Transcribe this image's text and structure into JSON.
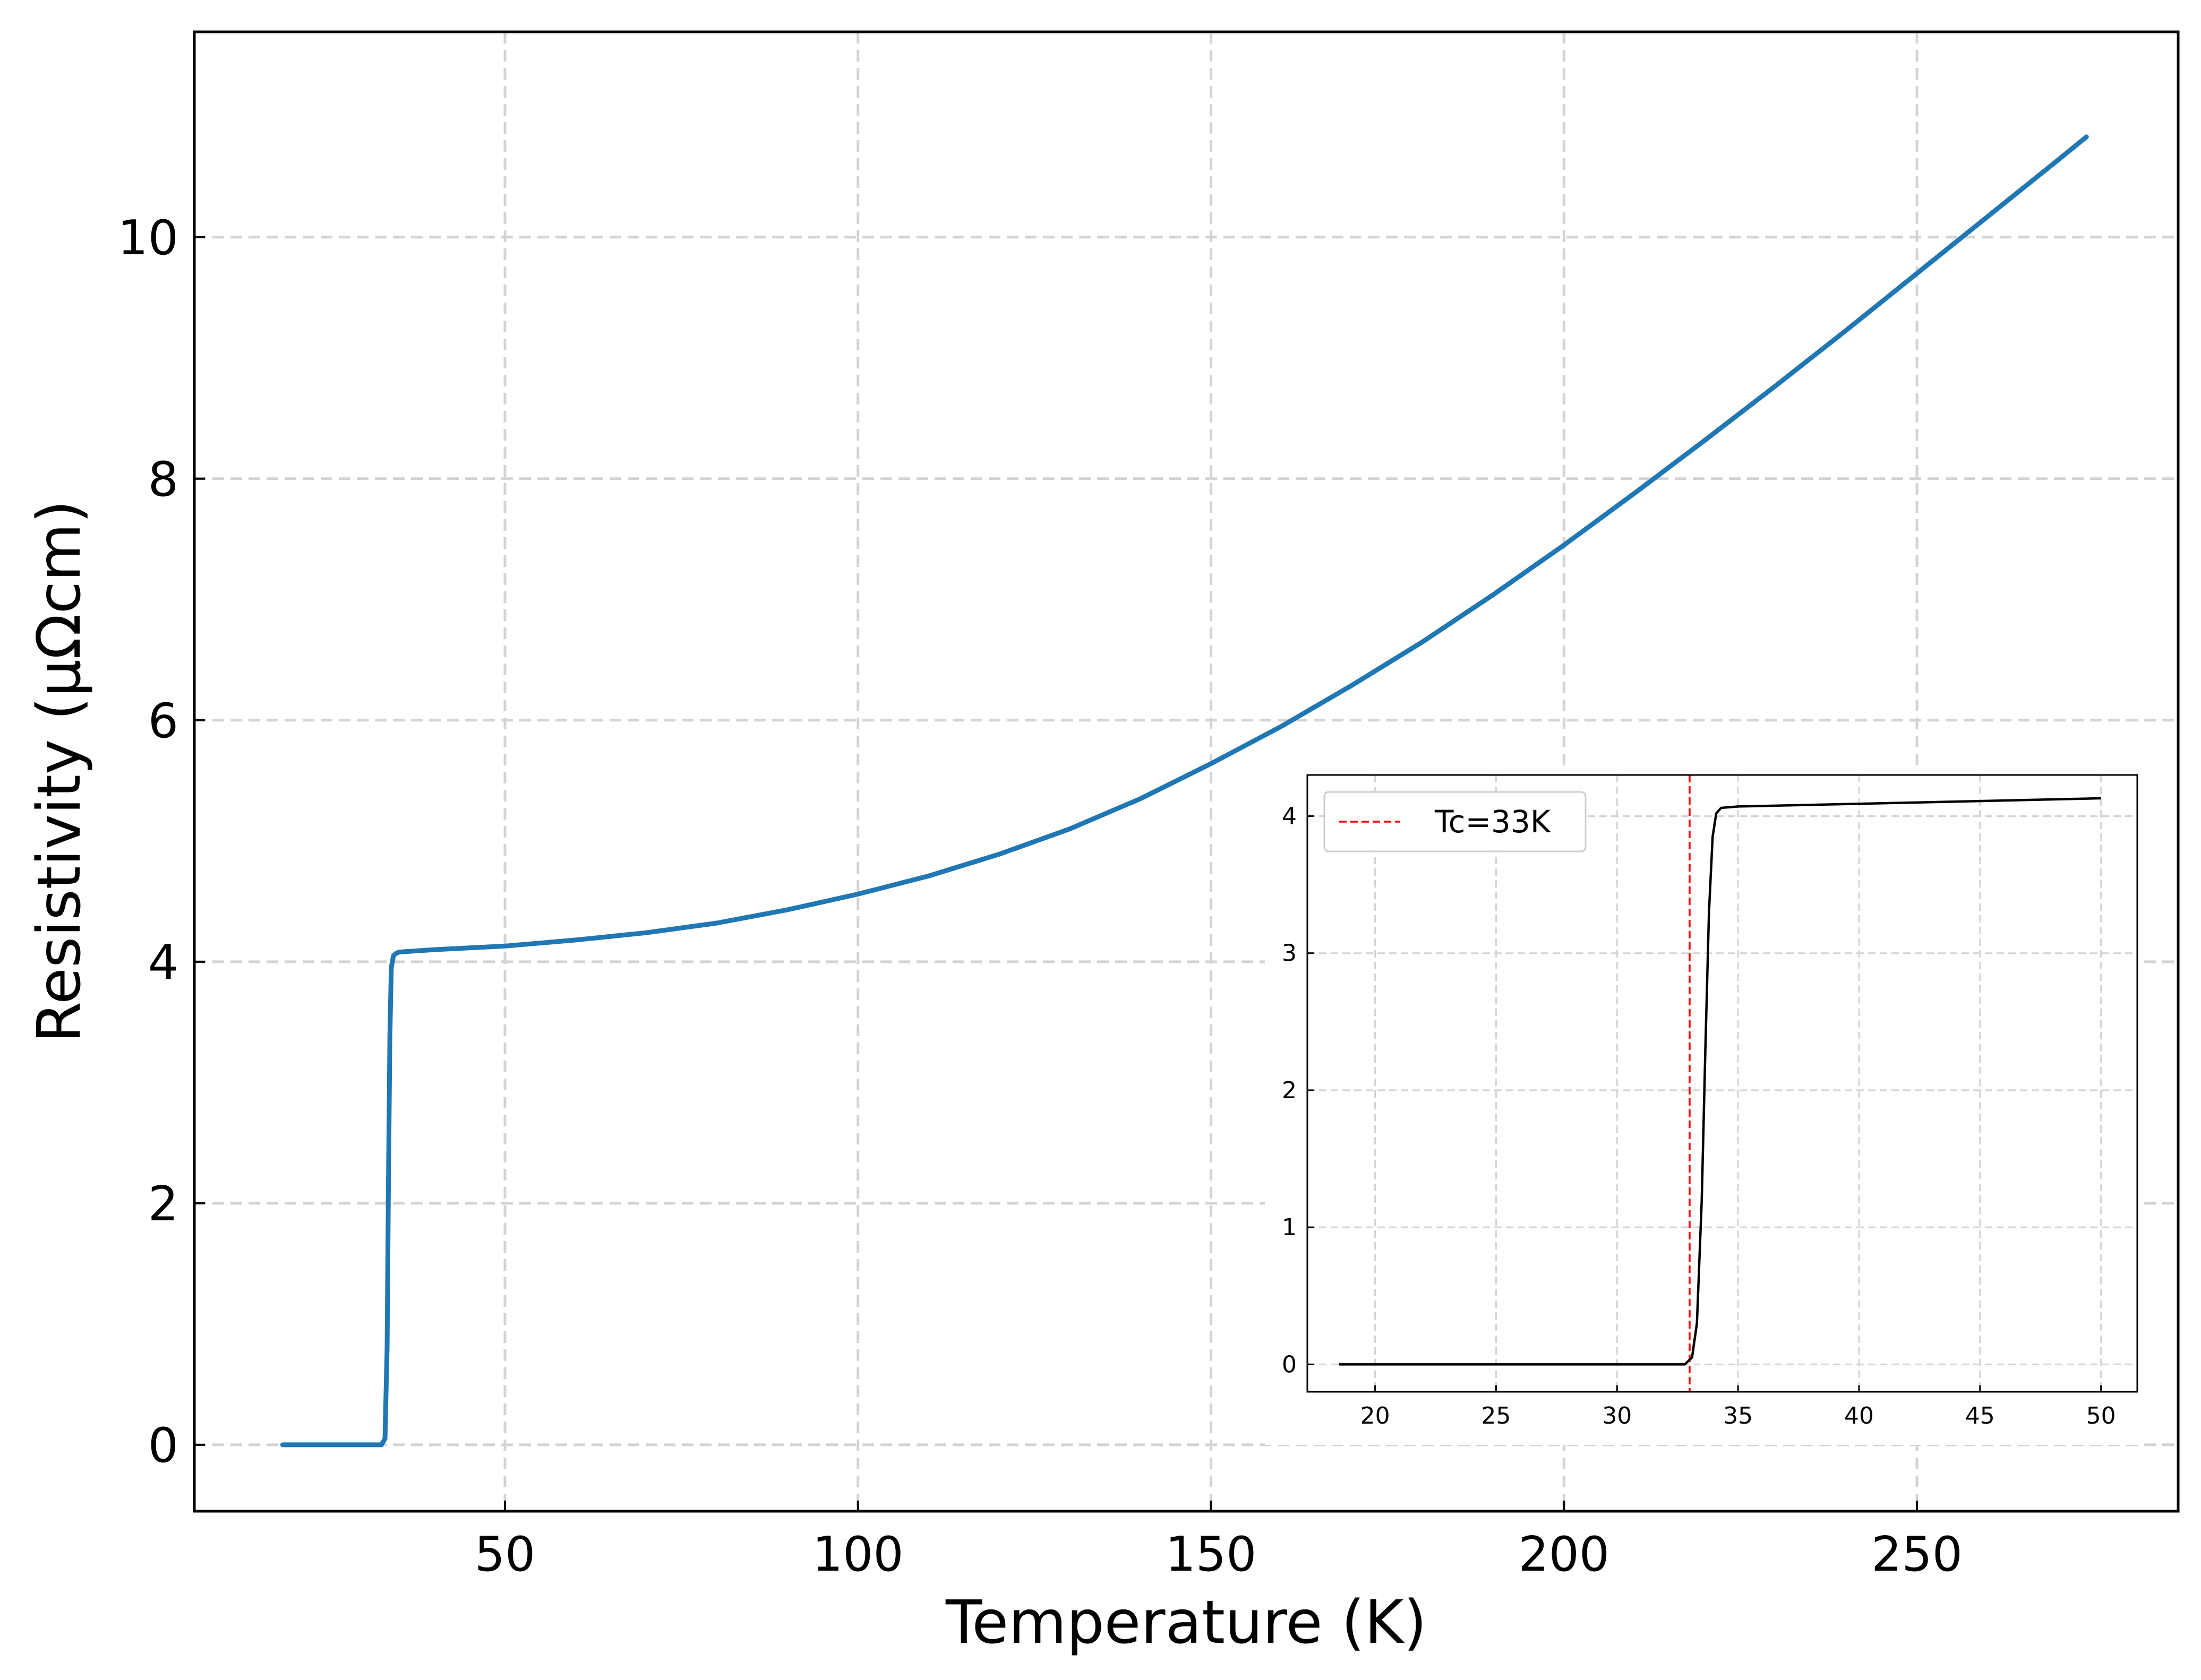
{
  "chart_data": [
    {
      "type": "line",
      "xlabel": "Temperature (K)",
      "ylabel": "Resistivity (μΩcm)",
      "xlim": [
        6,
        287
      ],
      "ylim": [
        -0.55,
        11.7
      ],
      "xticks": [
        50,
        100,
        150,
        200,
        250
      ],
      "yticks": [
        0,
        2,
        4,
        6,
        8,
        10
      ],
      "grid": true,
      "series": [
        {
          "color": "#1f77b4",
          "x": [
            18.5,
            25,
            30,
            32.5,
            33.0,
            33.3,
            33.5,
            33.7,
            33.9,
            34.2,
            34.6,
            35,
            40,
            50,
            60,
            70,
            80,
            90,
            100,
            110,
            120,
            130,
            140,
            150,
            160,
            170,
            180,
            190,
            200,
            210,
            220,
            230,
            240,
            250,
            260,
            270,
            274
          ],
          "y": [
            0,
            0,
            0,
            0,
            0.05,
            0.8,
            2.2,
            3.4,
            3.95,
            4.05,
            4.07,
            4.08,
            4.1,
            4.13,
            4.18,
            4.24,
            4.32,
            4.43,
            4.56,
            4.71,
            4.89,
            5.1,
            5.35,
            5.64,
            5.95,
            6.29,
            6.65,
            7.04,
            7.45,
            7.88,
            8.32,
            8.77,
            9.23,
            9.7,
            10.17,
            10.64,
            10.83
          ]
        }
      ]
    },
    {
      "type": "line",
      "xlim": [
        17.2,
        51.5
      ],
      "ylim": [
        -0.2,
        4.3
      ],
      "xticks": [
        20,
        25,
        30,
        35,
        40,
        45,
        50
      ],
      "yticks": [
        0,
        1,
        2,
        3,
        4
      ],
      "grid": true,
      "legend": "top-left",
      "series": [
        {
          "color": "#000000",
          "x": [
            18.5,
            20,
            25,
            30,
            32.8,
            33.1,
            33.3,
            33.5,
            33.65,
            33.8,
            33.95,
            34.1,
            34.3,
            35,
            40,
            45,
            50
          ],
          "y": [
            0,
            0,
            0,
            0,
            0,
            0.05,
            0.3,
            1.2,
            2.3,
            3.3,
            3.85,
            4.02,
            4.06,
            4.07,
            4.09,
            4.11,
            4.13
          ]
        }
      ],
      "reference_line": {
        "x": 33,
        "color": "#ff0000",
        "label": "Tc=33K"
      }
    }
  ]
}
